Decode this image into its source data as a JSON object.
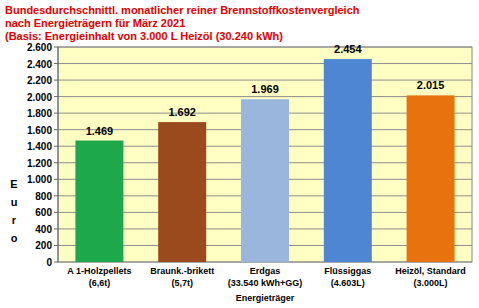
{
  "chart_data": {
    "type": "bar",
    "title": "Bundesdurchschnittl. monatlicher reiner Brennstoffkostenvergleich\nnach Energieträgern  für März 2021",
    "subtitle": "(Basis: Energieinhalt von  3.000 L Heizöl (30.240 kWh)",
    "x_label": "Energieträger",
    "y_label": "Euro",
    "categories": [
      "A 1-Holzpellets (6,6t)",
      "Braunk.-brikett (5,7t)",
      "Erdgas (33.540 kWh+GG)",
      "Flüssiggas (4.603L)",
      "Heizöl, Standard (3.000L)"
    ],
    "values": [
      1469,
      1692,
      1969,
      2454,
      2015
    ],
    "value_labels": [
      "1.469",
      "1.692",
      "1.969",
      "2.454",
      "2.015"
    ],
    "colors": [
      "#1ea84c",
      "#9a4a1c",
      "#9bb6dc",
      "#4f86d4",
      "#e8720e"
    ],
    "ylim": [
      0,
      2600
    ],
    "yticks": [
      0,
      200,
      400,
      600,
      800,
      {
        "value": 1000,
        "label": "1.000"
      },
      {
        "value": 1200,
        "label": "1.200"
      },
      {
        "value": 1400,
        "label": "1.400"
      },
      {
        "value": 1600,
        "label": "1.600"
      },
      {
        "value": 1800,
        "label": "1.800"
      },
      {
        "value": 2000,
        "label": "2.000"
      },
      {
        "value": 2200,
        "label": "2.200"
      },
      {
        "value": 2400,
        "label": "2.400"
      },
      {
        "value": 2600,
        "label": "2.600"
      }
    ],
    "grid": true,
    "data_labels": true
  }
}
